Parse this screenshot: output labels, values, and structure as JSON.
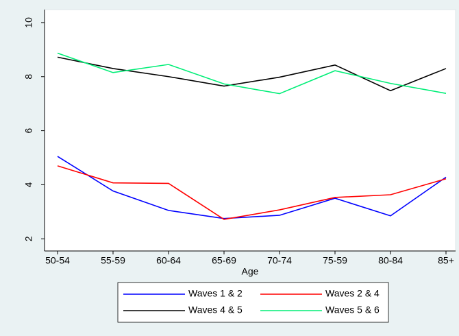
{
  "chart_data": {
    "type": "line",
    "x_label": "Age",
    "categories": [
      "50-54",
      "55-59",
      "60-64",
      "65-69",
      "70-74",
      "75-59",
      "80-84",
      "85+"
    ],
    "series": [
      {
        "name": "Waves 1 & 2",
        "color": "#0000ff",
        "values": [
          5.05,
          3.77,
          3.05,
          2.75,
          2.87,
          3.5,
          2.85,
          4.28
        ]
      },
      {
        "name": "Waves 2 & 4",
        "color": "#ff0000",
        "values": [
          4.7,
          4.07,
          4.05,
          2.72,
          3.07,
          3.53,
          3.63,
          4.22
        ]
      },
      {
        "name": "Waves 4 & 5",
        "color": "#000000",
        "values": [
          8.72,
          8.3,
          8.0,
          7.65,
          7.98,
          8.43,
          7.48,
          8.3
        ]
      },
      {
        "name": "Waves 5 & 6",
        "color": "#00ee77",
        "values": [
          8.87,
          8.15,
          8.45,
          7.73,
          7.37,
          8.22,
          7.75,
          7.38
        ]
      }
    ],
    "ylim": [
      1.55,
      10.48
    ],
    "yticks": [
      2,
      4,
      6,
      8,
      10
    ],
    "grid": false,
    "legend": "bottom"
  }
}
